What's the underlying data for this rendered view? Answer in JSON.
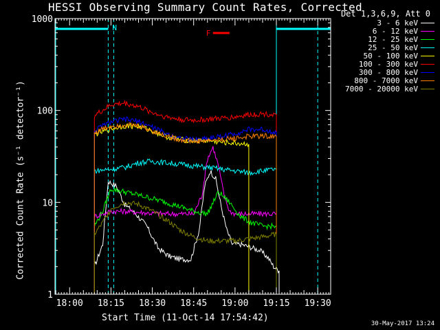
{
  "title": "HESSI Observing Summary Count Rates, Corrected",
  "legend_title": "Det 1,3,6,9, Att 0",
  "date_stamp": "30-May-2017 13:24",
  "colors": {
    "background": "#000000",
    "axes": "#ffffff",
    "night_marker": "#00ffff",
    "flare_marker": "#ff0000"
  },
  "chart_data": {
    "type": "line",
    "title": "HESSI Observing Summary Count Rates, Corrected",
    "xlabel": "Start Time (11-Oct-14 17:54:42)",
    "ylabel": "Corrected Count Rate (s⁻¹ detector⁻¹)",
    "y_scale": "log",
    "xlim": [
      "17:54:42",
      "19:34:42"
    ],
    "ylim": [
      1,
      1000
    ],
    "x_ticks": [
      "18:00",
      "18:15",
      "18:30",
      "18:45",
      "19:00",
      "19:15",
      "19:30"
    ],
    "y_ticks": [
      "1",
      "10",
      "100",
      "1000"
    ],
    "legend_position": "outside-right",
    "grid": false,
    "annotations": {
      "night": {
        "label": "N",
        "intervals": [
          [
            "17:54:42",
            "18:14:00"
          ],
          [
            "19:15:00",
            "19:34:42"
          ]
        ]
      },
      "flare": {
        "label": "F",
        "start": "18:52:00",
        "end": "18:58:00"
      },
      "dashed_lines": [
        "18:16:00",
        "19:30:00"
      ]
    },
    "series": [
      {
        "name": "3 - 6 keV",
        "color": "#ffffff",
        "x": [
          "18:09",
          "18:12",
          "18:14",
          "18:17",
          "18:20",
          "18:24",
          "18:28",
          "18:32",
          "18:36",
          "18:40",
          "18:44",
          "18:47",
          "18:49",
          "18:51",
          "18:53",
          "18:55",
          "18:57",
          "18:59",
          "19:02",
          "19:05",
          "19:09",
          "19:12",
          "19:14",
          "19:16"
        ],
        "y": [
          2.0,
          3.5,
          17,
          15,
          9.5,
          7.5,
          5.5,
          3.2,
          2.6,
          2.4,
          2.4,
          5,
          15,
          22,
          18,
          9,
          5,
          3.5,
          3.5,
          3.3,
          3,
          2.5,
          2,
          1.8
        ]
      },
      {
        "name": "6 - 12 keV",
        "color": "#ff00ff",
        "x": [
          "18:09",
          "18:12",
          "18:15",
          "18:20",
          "18:25",
          "18:30",
          "18:35",
          "18:40",
          "18:45",
          "18:48",
          "18:50",
          "18:52",
          "18:54",
          "18:56",
          "18:58",
          "19:00",
          "19:05",
          "19:10",
          "19:15"
        ],
        "y": [
          7,
          7.5,
          8,
          8,
          7.8,
          7.6,
          7.5,
          7.5,
          7.5,
          12,
          30,
          40,
          25,
          12,
          8,
          7.5,
          7.5,
          7.5,
          7.5
        ]
      },
      {
        "name": "12 - 25 keV",
        "color": "#00ff00",
        "x": [
          "18:09",
          "18:12",
          "18:15",
          "18:20",
          "18:25",
          "18:30",
          "18:35",
          "18:40",
          "18:45",
          "18:50",
          "18:54",
          "18:58",
          "19:02",
          "19:06",
          "19:10",
          "19:15"
        ],
        "y": [
          5.5,
          8,
          14,
          13,
          12,
          11,
          10,
          9,
          8,
          7.5,
          13,
          10,
          7,
          6,
          5.5,
          5.5
        ]
      },
      {
        "name": "25 - 50 keV",
        "color": "#00ffff",
        "x": [
          "18:09",
          "18:15",
          "18:20",
          "18:25",
          "18:30",
          "18:35",
          "18:40",
          "18:45",
          "18:50",
          "18:55",
          "19:00",
          "19:05",
          "19:10",
          "19:15"
        ],
        "y": [
          22,
          23,
          24,
          27,
          28,
          27,
          26,
          25,
          24,
          23,
          22,
          21,
          22,
          23
        ]
      },
      {
        "name": "50 - 100 keV",
        "color": "#ffff00",
        "x": [
          "18:09",
          "18:15",
          "18:20",
          "18:25",
          "18:30",
          "18:35",
          "18:40",
          "18:45",
          "18:50",
          "18:55",
          "19:00",
          "19:05"
        ],
        "y": [
          55,
          63,
          68,
          67,
          60,
          52,
          48,
          47,
          47,
          45,
          44,
          43
        ]
      },
      {
        "name": "100 - 300 keV",
        "color": "#ff0000",
        "x": [
          "18:09",
          "18:12",
          "18:15",
          "18:20",
          "18:25",
          "18:30",
          "18:35",
          "18:40",
          "18:45",
          "18:50",
          "18:55",
          "19:00",
          "19:05",
          "19:10",
          "19:15"
        ],
        "y": [
          88,
          100,
          115,
          120,
          110,
          95,
          85,
          80,
          78,
          80,
          82,
          85,
          90,
          92,
          90
        ]
      },
      {
        "name": "300 - 800 keV",
        "color": "#0000ff",
        "x": [
          "18:09",
          "18:12",
          "18:15",
          "18:20",
          "18:25",
          "18:30",
          "18:35",
          "18:40",
          "18:45",
          "18:50",
          "18:55",
          "19:00",
          "19:05",
          "19:10",
          "19:15"
        ],
        "y": [
          60,
          68,
          75,
          80,
          76,
          66,
          56,
          50,
          48,
          50,
          52,
          56,
          62,
          62,
          58
        ]
      },
      {
        "name": "800 - 7000 keV",
        "color": "#ff8000",
        "x": [
          "18:09",
          "18:12",
          "18:15",
          "18:20",
          "18:25",
          "18:30",
          "18:35",
          "18:40",
          "18:45",
          "18:50",
          "18:55",
          "19:00",
          "19:05",
          "19:10",
          "19:15"
        ],
        "y": [
          57,
          63,
          68,
          70,
          68,
          60,
          53,
          48,
          46,
          47,
          48,
          50,
          52,
          53,
          52
        ]
      },
      {
        "name": "7000 - 20000 keV",
        "color": "#808000",
        "x": [
          "18:09",
          "18:12",
          "18:15",
          "18:20",
          "18:25",
          "18:30",
          "18:35",
          "18:40",
          "18:45",
          "18:50",
          "18:55",
          "19:00",
          "19:05",
          "19:10",
          "19:15"
        ],
        "y": [
          4.5,
          6,
          8.5,
          10,
          9.5,
          8,
          6.5,
          5,
          4.2,
          3.8,
          3.8,
          3.8,
          4,
          4.2,
          4.5
        ]
      }
    ]
  }
}
